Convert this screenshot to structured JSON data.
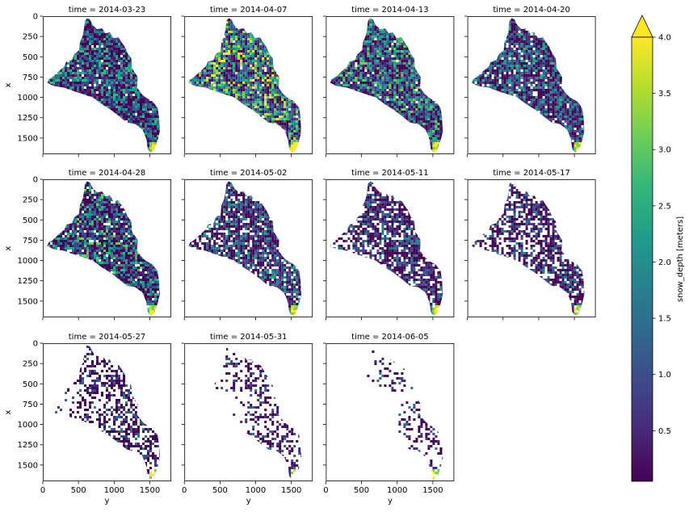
{
  "chart_data": {
    "type": "heatmap",
    "panels": [
      {
        "title": "time = 2014-03-23",
        "fill": 0.98,
        "bright": 0.35
      },
      {
        "title": "time = 2014-04-07",
        "fill": 0.99,
        "bright": 0.6
      },
      {
        "title": "time = 2014-04-13",
        "fill": 0.98,
        "bright": 0.45
      },
      {
        "title": "time = 2014-04-20",
        "fill": 0.94,
        "bright": 0.3
      },
      {
        "title": "time = 2014-04-28",
        "fill": 0.96,
        "bright": 0.4
      },
      {
        "title": "time = 2014-05-02",
        "fill": 0.88,
        "bright": 0.25
      },
      {
        "title": "time = 2014-05-11",
        "fill": 0.8,
        "bright": 0.15
      },
      {
        "title": "time = 2014-05-17",
        "fill": 0.74,
        "bright": 0.12
      },
      {
        "title": "time = 2014-05-27",
        "fill": 0.6,
        "bright": 0.08
      },
      {
        "title": "time = 2014-05-31",
        "fill": 0.45,
        "bright": 0.05
      },
      {
        "title": "time = 2014-06-05",
        "fill": 0.32,
        "bright": 0.03
      }
    ],
    "xlabel": "y",
    "ylabel": "x",
    "xlim": [
      0,
      1800
    ],
    "ylim": [
      1700,
      0
    ],
    "xticks": [
      "0",
      "500",
      "1000",
      "1500"
    ],
    "xtick_values": [
      0,
      500,
      1000,
      1500
    ],
    "yticks": [
      "0",
      "250",
      "500",
      "750",
      "1000",
      "1250",
      "1500"
    ],
    "ytick_values": [
      0,
      250,
      500,
      750,
      1000,
      1250,
      1500
    ],
    "grid": false,
    "colorbar": {
      "label": "snow_depth [meters]",
      "vmin": 0.05,
      "vmax": 4.0,
      "extend": "max",
      "cmap": "viridis",
      "ticks": [
        "0.5",
        "1.0",
        "1.5",
        "2.0",
        "2.5",
        "3.0",
        "3.5",
        "4.0"
      ],
      "tick_values": [
        0.5,
        1.0,
        1.5,
        2.0,
        2.5,
        3.0,
        3.5,
        4.0
      ]
    }
  },
  "colors": {
    "viridis": [
      "#440154",
      "#482878",
      "#3e4989",
      "#31688e",
      "#26828e",
      "#1f9e89",
      "#35b779",
      "#6ece58",
      "#b5de2b",
      "#fde725"
    ],
    "nodata": "#ffffff"
  }
}
